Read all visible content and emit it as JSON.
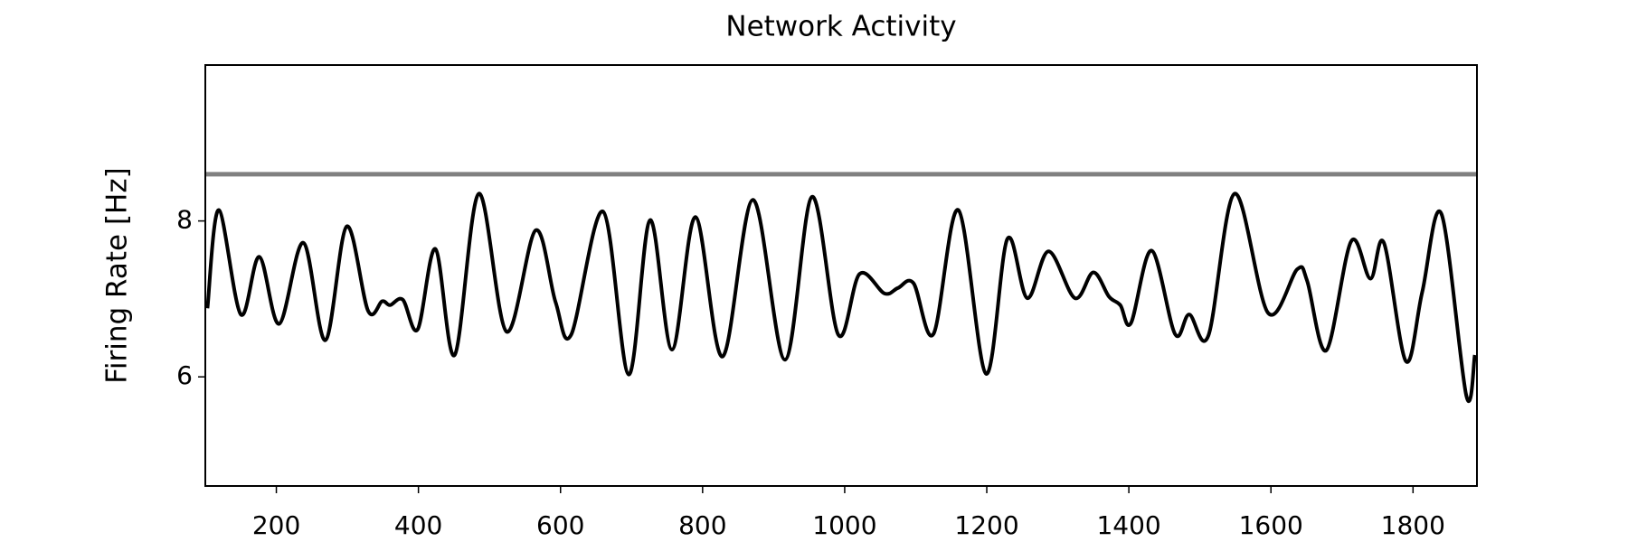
{
  "chart_data": {
    "type": "line",
    "title": "Network Activity",
    "y_label": "Firing Rate [Hz]",
    "x": [
      103,
      119,
      150,
      176,
      204,
      238,
      269,
      299,
      329,
      349,
      360,
      378,
      399,
      424,
      451,
      485,
      524,
      565,
      593,
      615,
      660,
      696,
      726,
      757,
      790,
      828,
      871,
      916,
      954,
      991,
      1021,
      1056,
      1075,
      1097,
      1125,
      1160,
      1199,
      1229,
      1257,
      1287,
      1324,
      1350,
      1372,
      1388,
      1403,
      1432,
      1465,
      1485,
      1512,
      1549,
      1596,
      1637,
      1651,
      1678,
      1713,
      1740,
      1759,
      1790,
      1813,
      1840,
      1875,
      1887
    ],
    "series": [
      {
        "color": "#000000",
        "values": [
          6.88,
          8.14,
          6.8,
          7.54,
          6.68,
          7.72,
          6.47,
          7.93,
          6.85,
          6.97,
          6.92,
          6.99,
          6.61,
          7.64,
          6.28,
          8.35,
          6.58,
          7.88,
          6.96,
          6.54,
          8.12,
          6.03,
          8.01,
          6.35,
          8.05,
          6.26,
          8.27,
          6.22,
          8.31,
          6.54,
          7.32,
          7.07,
          7.14,
          7.2,
          6.55,
          8.14,
          6.04,
          7.77,
          7.01,
          7.61,
          7.01,
          7.34,
          7.03,
          6.92,
          6.69,
          7.62,
          6.55,
          6.8,
          6.53,
          8.35,
          6.82,
          7.38,
          7.23,
          6.34,
          7.74,
          7.26,
          7.72,
          6.2,
          7.09,
          8.09,
          5.76,
          6.28
        ]
      }
    ],
    "reference_line": {
      "value": 8.6,
      "color": "#808080"
    },
    "xlim": [
      100,
      1890
    ],
    "xticks": [
      200,
      400,
      600,
      800,
      1000,
      1200,
      1400,
      1600,
      1800
    ],
    "ylim": [
      4.6,
      10
    ],
    "yticks": [
      6,
      8
    ],
    "grid": false
  }
}
